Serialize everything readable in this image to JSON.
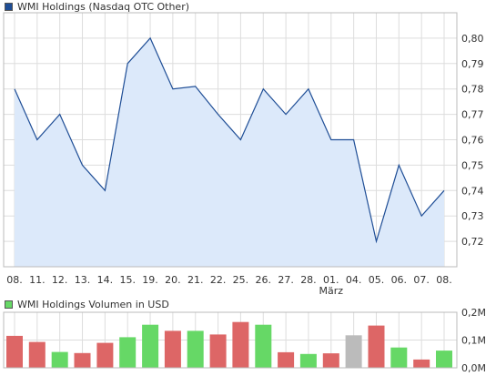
{
  "chart_data": [
    {
      "type": "area",
      "title": "WMI Holdings (Nasdaq OTC Other)",
      "xlabel": "",
      "ylabel": "",
      "categories": [
        "08.",
        "11.",
        "12.",
        "13.",
        "14.",
        "15.",
        "19.",
        "20.",
        "21.",
        "22.",
        "25.",
        "26.",
        "27.",
        "28.",
        "01.",
        "04.",
        "05.",
        "06.",
        "07.",
        "08."
      ],
      "month_marker": {
        "label": "März",
        "category_index": 14
      },
      "series": [
        {
          "name": "",
          "values": [
            0.78,
            0.76,
            0.77,
            0.75,
            0.74,
            0.79,
            0.8,
            0.78,
            0.781,
            0.77,
            0.76,
            0.78,
            0.77,
            0.78,
            0.76,
            0.76,
            0.72,
            0.75,
            0.73,
            0.74
          ]
        }
      ],
      "ylim": [
        0.71,
        0.81
      ],
      "yticks": [
        "0,80",
        "0,79",
        "0,78",
        "0,77",
        "0,76",
        "0,75",
        "0,74",
        "0,73",
        "0,72"
      ],
      "ytick_values": [
        0.8,
        0.79,
        0.78,
        0.77,
        0.76,
        0.75,
        0.74,
        0.73,
        0.72
      ],
      "grid": true,
      "colors": {
        "line": "#1f4e96",
        "fill": "#dce9fa",
        "grid": "#dddddd",
        "legend_swatch": "#1f4e96"
      }
    },
    {
      "type": "bar",
      "title": "WMI Holdings Volumen in USD",
      "xlabel": "",
      "ylabel": "",
      "values": [
        0.115,
        0.093,
        0.057,
        0.053,
        0.09,
        0.11,
        0.155,
        0.133,
        0.133,
        0.12,
        0.165,
        0.155,
        0.056,
        0.05,
        0.052,
        0.117,
        0.152,
        0.073,
        0.03,
        0.062
      ],
      "value_unit": "M",
      "bar_status": [
        "down",
        "down",
        "up",
        "down",
        "down",
        "up",
        "up",
        "down",
        "up",
        "down",
        "down",
        "up",
        "down",
        "up",
        "down",
        "flat",
        "down",
        "up",
        "down",
        "up"
      ],
      "ylim": [
        0,
        0.2
      ],
      "yticks": [
        "0,2M",
        "0,1M",
        "0,0M"
      ],
      "ytick_values": [
        0.2,
        0.1,
        0.0
      ],
      "grid": true,
      "colors": {
        "up": "#66d866",
        "down": "#dd6666",
        "flat": "#bbbbbb",
        "legend_swatch": "#66d866"
      }
    }
  ]
}
